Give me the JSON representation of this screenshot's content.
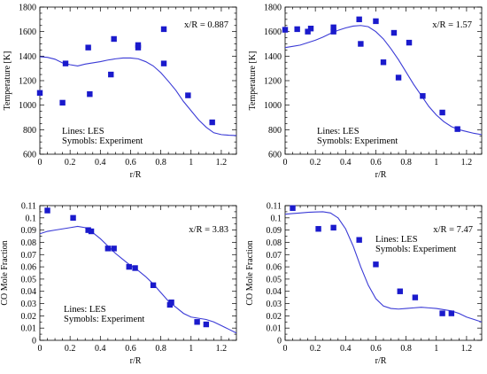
{
  "chart_data": [
    {
      "type": "scatter",
      "annotation": "x/R = 0.887",
      "legend_lines": "Lines: LES",
      "legend_symbols": "Symobls: Experiment",
      "xlabel": "r/R",
      "ylabel": "Temperature [K]",
      "xlim": [
        0,
        1.3
      ],
      "ylim": [
        600,
        1800
      ],
      "xticks": [
        0,
        0.2,
        0.4,
        0.6,
        0.8,
        1,
        1.2
      ],
      "yticks": [
        600,
        800,
        1000,
        1200,
        1400,
        1600,
        1800
      ],
      "xtick_labels": [
        "0",
        "0.2",
        "0.4",
        "0.6",
        "0.8",
        "1",
        "1.2"
      ],
      "ytick_labels": [
        "600",
        "800",
        "1000",
        "1200",
        "1400",
        "1600",
        "1800"
      ],
      "colors": {
        "line": "#3a3ad6",
        "marker": "#1a1acc"
      },
      "series": [
        {
          "kind": "line",
          "x": [
            0,
            0.05,
            0.1,
            0.15,
            0.2,
            0.25,
            0.3,
            0.35,
            0.4,
            0.45,
            0.5,
            0.55,
            0.6,
            0.65,
            0.7,
            0.75,
            0.8,
            0.85,
            0.9,
            0.95,
            1.0,
            1.05,
            1.1,
            1.15,
            1.2,
            1.25,
            1.3
          ],
          "y": [
            1395,
            1390,
            1375,
            1345,
            1330,
            1320,
            1335,
            1345,
            1355,
            1368,
            1378,
            1385,
            1385,
            1378,
            1355,
            1320,
            1265,
            1195,
            1120,
            1030,
            955,
            880,
            820,
            775,
            760,
            755,
            752
          ]
        },
        {
          "kind": "scatter",
          "x": [
            0,
            0.15,
            0.17,
            0.32,
            0.33,
            0.47,
            0.49,
            0.65,
            0.65,
            0.82,
            0.82,
            0.98,
            1.14
          ],
          "y": [
            1100,
            1020,
            1340,
            1470,
            1090,
            1250,
            1540,
            1490,
            1470,
            1620,
            1340,
            1080,
            860
          ]
        }
      ]
    },
    {
      "type": "scatter",
      "annotation": "x/R = 1.57",
      "legend_lines": "Lines: LES",
      "legend_symbols": "Symobls: Experiment",
      "xlabel": "r/R",
      "ylabel": "Temperature [K]",
      "xlim": [
        0,
        1.3
      ],
      "ylim": [
        600,
        1800
      ],
      "xticks": [
        0,
        0.2,
        0.4,
        0.6,
        0.8,
        1,
        1.2
      ],
      "yticks": [
        600,
        800,
        1000,
        1200,
        1400,
        1600,
        1800
      ],
      "xtick_labels": [
        "0",
        "0.2",
        "0.4",
        "0.6",
        "0.8",
        "1",
        "1.2"
      ],
      "ytick_labels": [
        "600",
        "800",
        "1000",
        "1200",
        "1400",
        "1600",
        "1800"
      ],
      "colors": {
        "line": "#3a3ad6",
        "marker": "#1a1acc"
      },
      "series": [
        {
          "kind": "line",
          "x": [
            0,
            0.05,
            0.1,
            0.15,
            0.2,
            0.25,
            0.3,
            0.35,
            0.4,
            0.45,
            0.5,
            0.55,
            0.6,
            0.65,
            0.7,
            0.75,
            0.8,
            0.85,
            0.9,
            0.95,
            1.0,
            1.05,
            1.1,
            1.15,
            1.2,
            1.25,
            1.3
          ],
          "y": [
            1470,
            1480,
            1490,
            1510,
            1530,
            1555,
            1585,
            1610,
            1630,
            1645,
            1650,
            1640,
            1600,
            1540,
            1460,
            1370,
            1270,
            1170,
            1080,
            990,
            920,
            865,
            825,
            800,
            785,
            770,
            760
          ]
        },
        {
          "kind": "scatter",
          "x": [
            0,
            0.08,
            0.15,
            0.17,
            0.32,
            0.32,
            0.49,
            0.5,
            0.6,
            0.65,
            0.72,
            0.75,
            0.82,
            0.91,
            1.04,
            1.14
          ],
          "y": [
            1615,
            1620,
            1600,
            1625,
            1600,
            1635,
            1700,
            1500,
            1685,
            1350,
            1590,
            1225,
            1510,
            1075,
            940,
            805
          ]
        }
      ]
    },
    {
      "type": "scatter",
      "annotation": "x/R = 3.83",
      "legend_lines": "Lines: LES",
      "legend_symbols": "Symobls: Experiment",
      "xlabel": "r/R",
      "ylabel": "CO Mole Fraction",
      "xlim": [
        0,
        1.3
      ],
      "ylim": [
        0,
        0.11
      ],
      "xticks": [
        0,
        0.2,
        0.4,
        0.6,
        0.8,
        1,
        1.2
      ],
      "yticks": [
        0,
        0.01,
        0.02,
        0.03,
        0.04,
        0.05,
        0.06,
        0.07,
        0.08,
        0.09,
        0.1,
        0.11
      ],
      "xtick_labels": [
        "0",
        "0.2",
        "0.4",
        "0.6",
        "0.8",
        "1",
        "1.2"
      ],
      "ytick_labels": [
        "0",
        "0.01",
        "0.02",
        "0.03",
        "0.04",
        "0.05",
        "0.06",
        "0.07",
        "0.08",
        "0.09",
        "0.1",
        "0.11"
      ],
      "colors": {
        "line": "#3a3ad6",
        "marker": "#1a1acc"
      },
      "series": [
        {
          "kind": "line",
          "x": [
            0,
            0.05,
            0.1,
            0.15,
            0.2,
            0.25,
            0.3,
            0.35,
            0.4,
            0.45,
            0.5,
            0.55,
            0.6,
            0.65,
            0.7,
            0.75,
            0.8,
            0.85,
            0.9,
            0.95,
            1.0,
            1.05,
            1.1,
            1.15,
            1.2,
            1.25,
            1.3
          ],
          "y": [
            0.087,
            0.089,
            0.09,
            0.091,
            0.092,
            0.093,
            0.092,
            0.088,
            0.083,
            0.077,
            0.071,
            0.066,
            0.061,
            0.057,
            0.052,
            0.046,
            0.039,
            0.032,
            0.027,
            0.022,
            0.019,
            0.018,
            0.017,
            0.015,
            0.012,
            0.009,
            0.006
          ]
        },
        {
          "kind": "scatter",
          "x": [
            0.05,
            0.22,
            0.32,
            0.34,
            0.45,
            0.49,
            0.59,
            0.63,
            0.75,
            0.86,
            0.87,
            1.04,
            1.1
          ],
          "y": [
            0.106,
            0.1,
            0.09,
            0.089,
            0.075,
            0.075,
            0.06,
            0.059,
            0.045,
            0.029,
            0.031,
            0.015,
            0.013
          ]
        }
      ]
    },
    {
      "type": "scatter",
      "annotation": "x/R = 7.47",
      "legend_lines": "Lines: LES",
      "legend_symbols": "Symobls: Experiment",
      "xlabel": "r/R",
      "ylabel": "CO Mole Fraction",
      "xlim": [
        0,
        1.3
      ],
      "ylim": [
        0,
        0.11
      ],
      "xticks": [
        0,
        0.2,
        0.4,
        0.6,
        0.8,
        1,
        1.2
      ],
      "yticks": [
        0,
        0.01,
        0.02,
        0.03,
        0.04,
        0.05,
        0.06,
        0.07,
        0.08,
        0.09,
        0.1,
        0.11
      ],
      "xtick_labels": [
        "0",
        "0.2",
        "0.4",
        "0.6",
        "0.8",
        "1",
        "1.2"
      ],
      "ytick_labels": [
        "0",
        "0.01",
        "0.02",
        "0.03",
        "0.04",
        "0.05",
        "0.06",
        "0.07",
        "0.08",
        "0.09",
        "0.1",
        "0.11"
      ],
      "colors": {
        "line": "#3a3ad6",
        "marker": "#1a1acc"
      },
      "series": [
        {
          "kind": "line",
          "x": [
            0,
            0.05,
            0.1,
            0.15,
            0.2,
            0.25,
            0.3,
            0.35,
            0.4,
            0.45,
            0.5,
            0.55,
            0.6,
            0.65,
            0.7,
            0.75,
            0.8,
            0.85,
            0.9,
            0.95,
            1.0,
            1.05,
            1.1,
            1.15,
            1.2,
            1.25,
            1.3
          ],
          "y": [
            0.103,
            0.1035,
            0.104,
            0.1045,
            0.1048,
            0.105,
            0.104,
            0.1,
            0.091,
            0.077,
            0.06,
            0.045,
            0.034,
            0.028,
            0.026,
            0.0255,
            0.026,
            0.0265,
            0.027,
            0.0265,
            0.026,
            0.025,
            0.024,
            0.022,
            0.019,
            0.017,
            0.015
          ]
        },
        {
          "kind": "scatter",
          "x": [
            0.05,
            0.22,
            0.32,
            0.49,
            0.6,
            0.76,
            0.86,
            1.04,
            1.1
          ],
          "y": [
            0.108,
            0.091,
            0.092,
            0.082,
            0.062,
            0.04,
            0.035,
            0.022,
            0.022
          ]
        }
      ]
    }
  ]
}
